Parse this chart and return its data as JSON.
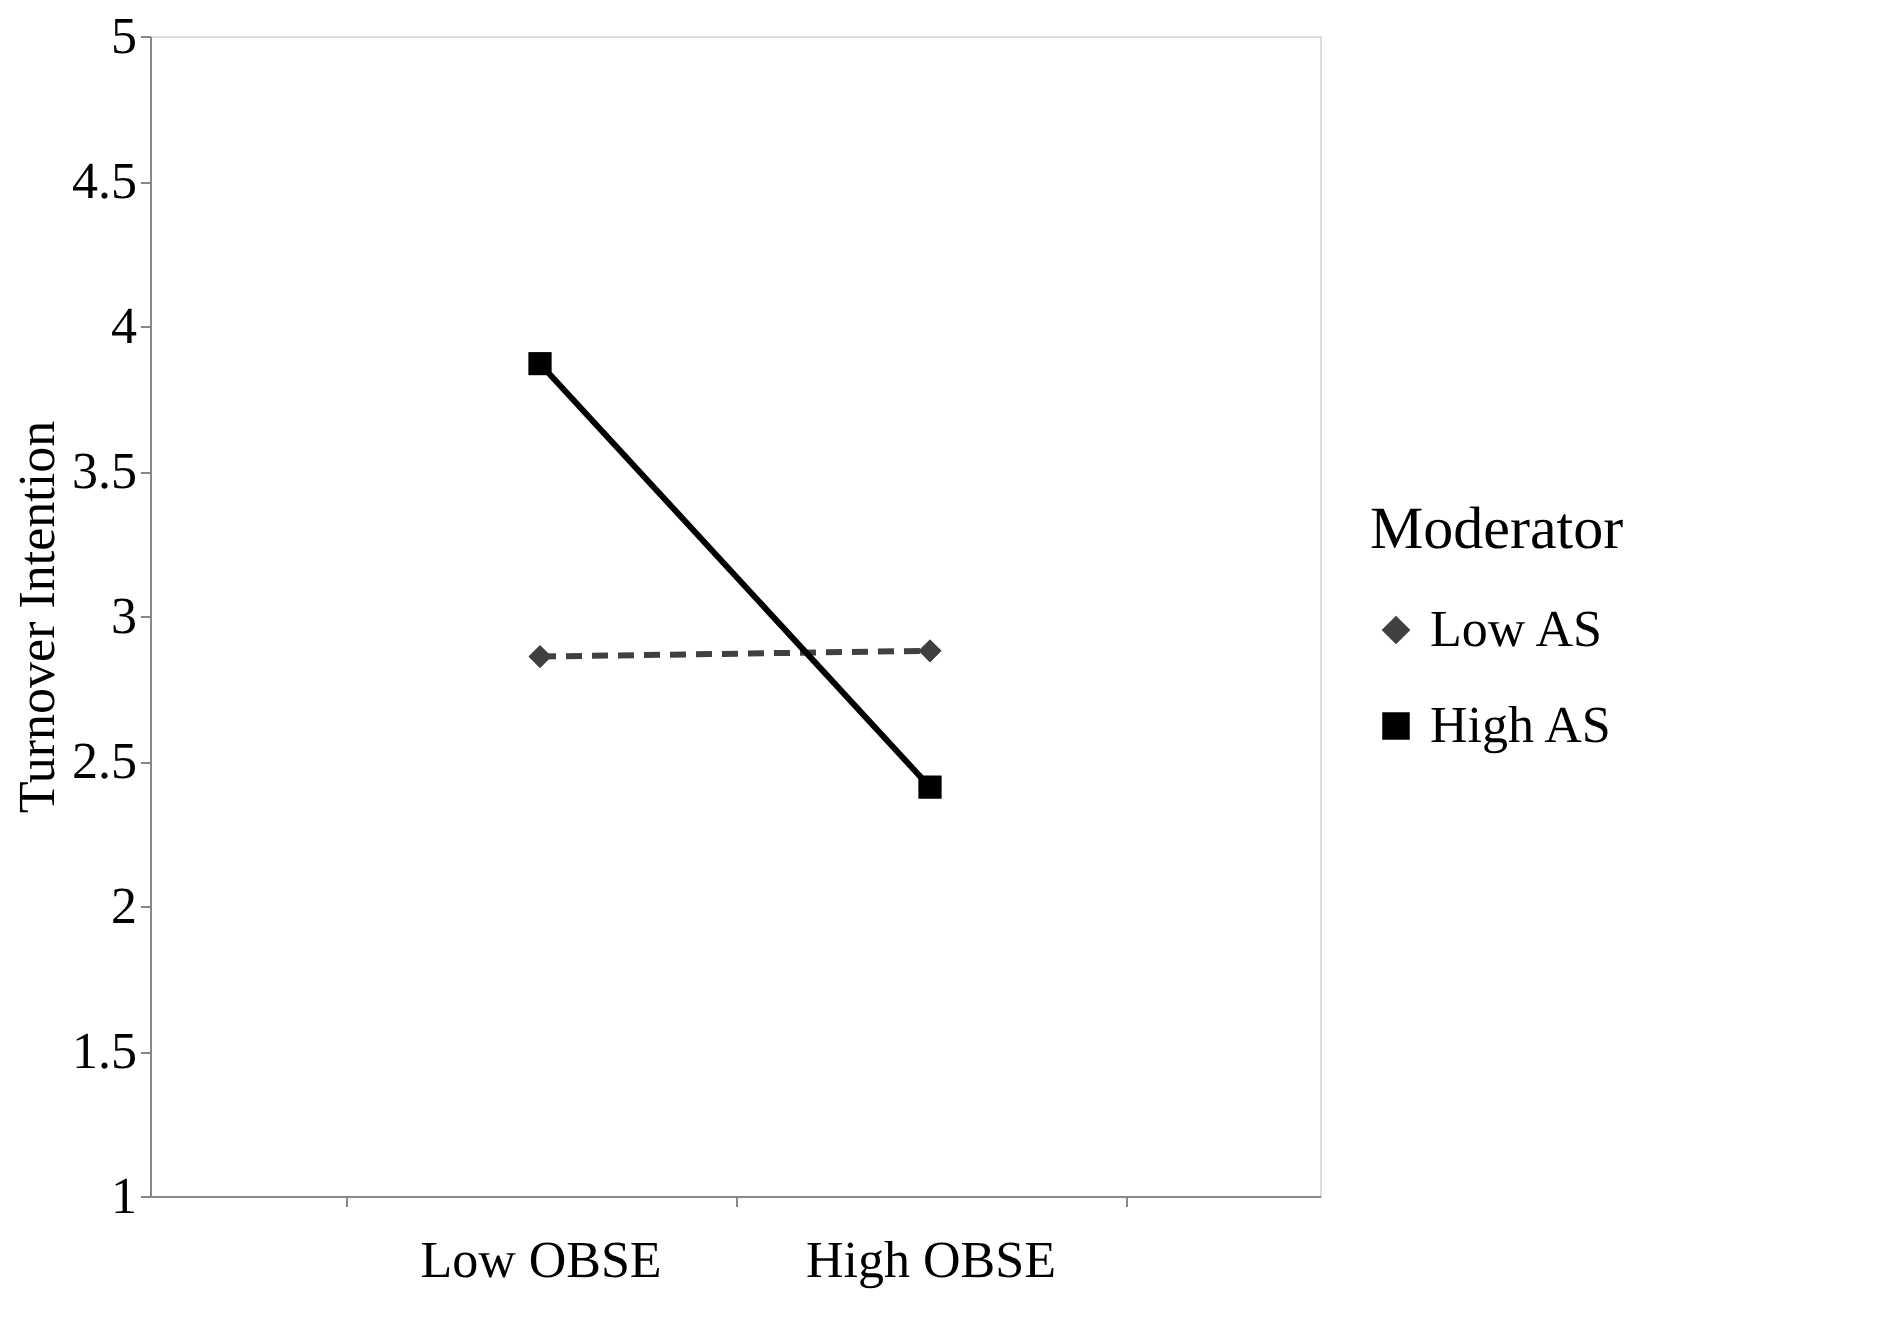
{
  "chart_data": {
    "type": "line",
    "ylabel": "Turnover Intention",
    "legend_title": "Moderator",
    "categories": [
      "Low OBSE",
      "High OBSE"
    ],
    "series": [
      {
        "name": "Low AS",
        "color": "#404040",
        "values": [
          2.86,
          2.88
        ],
        "marker": "diamond",
        "line_style": "dashed"
      },
      {
        "name": "High AS",
        "color": "#000000",
        "values": [
          3.87,
          2.41
        ],
        "marker": "square",
        "line_style": "solid"
      }
    ],
    "ylim": [
      1,
      5
    ],
    "yticks": [
      1,
      1.5,
      2,
      2.5,
      3,
      3.5,
      4,
      4.5,
      5
    ],
    "grid": false,
    "legend": "right"
  }
}
